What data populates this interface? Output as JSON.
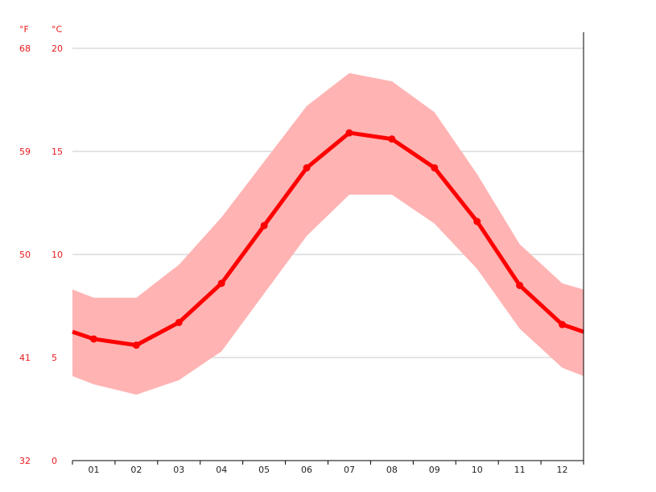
{
  "chart_data": {
    "type": "line",
    "title": "",
    "unit_left": "°F",
    "unit_right": "°C",
    "categories": [
      "01",
      "02",
      "03",
      "04",
      "05",
      "06",
      "07",
      "08",
      "09",
      "10",
      "11",
      "12"
    ],
    "y_ticks_c": [
      0,
      5,
      10,
      15,
      20
    ],
    "y_ticks_f": [
      32,
      41,
      50,
      59,
      68
    ],
    "ylim": [
      0,
      20
    ],
    "grid": true,
    "series": [
      {
        "role": "mean",
        "values": [
          5.9,
          5.6,
          6.7,
          8.6,
          11.4,
          14.2,
          15.9,
          15.6,
          14.2,
          11.6,
          8.5,
          6.6
        ],
        "color": "#ff0000"
      },
      {
        "role": "max",
        "values": [
          7.9,
          7.9,
          9.5,
          11.8,
          14.5,
          17.2,
          18.8,
          18.4,
          16.9,
          13.9,
          10.5,
          8.6
        ],
        "color": "#ffb3b3"
      },
      {
        "role": "min",
        "values": [
          3.7,
          3.2,
          3.9,
          5.3,
          8.1,
          10.9,
          12.9,
          12.9,
          11.5,
          9.3,
          6.4,
          4.5
        ],
        "color": "#ffb3b3"
      }
    ],
    "edge_values": {
      "mean": 6.25,
      "max": 8.3,
      "min": 4.1
    }
  }
}
